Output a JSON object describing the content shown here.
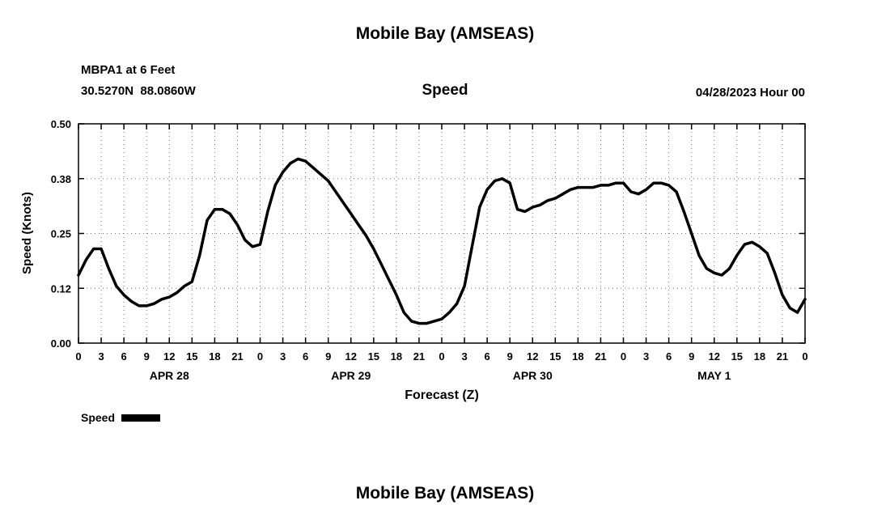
{
  "header": {
    "title": "Mobile Bay (AMSEAS)",
    "station": "MBPA1 at 6 Feet",
    "coordinates": "30.5270N  88.0860W",
    "plot_title": "Speed",
    "run_time": "04/28/2023 Hour 00"
  },
  "legend": {
    "label": "Speed",
    "swatch_color": "#000000"
  },
  "footer": {
    "next_title": "Mobile Bay (AMSEAS)"
  },
  "chart_data": {
    "type": "line",
    "title": "Speed",
    "xlabel": "Forecast (Z)",
    "ylabel": "Speed (Knots)",
    "series_name": "Speed",
    "line_color": "#000000",
    "grid": true,
    "xlim": [
      0,
      96
    ],
    "ylim": [
      0,
      0.5
    ],
    "x_ticks": [
      0,
      3,
      6,
      9,
      12,
      15,
      18,
      21,
      24,
      27,
      30,
      33,
      36,
      39,
      42,
      45,
      48,
      51,
      54,
      57,
      60,
      63,
      66,
      69,
      72,
      75,
      78,
      81,
      84,
      87,
      90,
      93,
      96
    ],
    "x_tick_labels": [
      "0",
      "3",
      "6",
      "9",
      "12",
      "15",
      "18",
      "21",
      "0",
      "3",
      "6",
      "9",
      "12",
      "15",
      "18",
      "21",
      "0",
      "3",
      "6",
      "9",
      "12",
      "15",
      "18",
      "21",
      "0",
      "3",
      "6",
      "9",
      "12",
      "15",
      "18",
      "21",
      "0"
    ],
    "y_ticks": [
      0,
      0.125,
      0.25,
      0.375,
      0.5
    ],
    "y_tick_labels": [
      "0.00",
      "0.12",
      "0.25",
      "0.38",
      "0.50"
    ],
    "date_labels": [
      {
        "label": "APR 28",
        "hour": 12
      },
      {
        "label": "APR 29",
        "hour": 36
      },
      {
        "label": "APR 30",
        "hour": 60
      },
      {
        "label": "MAY 1",
        "hour": 84
      }
    ],
    "x": [
      0,
      1,
      2,
      3,
      4,
      5,
      6,
      7,
      8,
      9,
      10,
      11,
      12,
      13,
      14,
      15,
      16,
      17,
      18,
      19,
      20,
      21,
      22,
      23,
      24,
      25,
      26,
      27,
      28,
      29,
      30,
      31,
      32,
      33,
      34,
      35,
      36,
      37,
      38,
      39,
      40,
      41,
      42,
      43,
      44,
      45,
      46,
      47,
      48,
      49,
      50,
      51,
      52,
      53,
      54,
      55,
      56,
      57,
      58,
      59,
      60,
      61,
      62,
      63,
      64,
      65,
      66,
      67,
      68,
      69,
      70,
      71,
      72,
      73,
      74,
      75,
      76,
      77,
      78,
      79,
      80,
      81,
      82,
      83,
      84,
      85,
      86,
      87,
      88,
      89,
      90,
      91,
      92,
      93,
      94,
      95,
      96
    ],
    "values": [
      0.155,
      0.19,
      0.215,
      0.215,
      0.17,
      0.13,
      0.11,
      0.095,
      0.085,
      0.085,
      0.09,
      0.1,
      0.105,
      0.115,
      0.13,
      0.14,
      0.2,
      0.28,
      0.305,
      0.305,
      0.295,
      0.27,
      0.235,
      0.22,
      0.225,
      0.3,
      0.36,
      0.39,
      0.41,
      0.42,
      0.415,
      0.4,
      0.385,
      0.37,
      0.345,
      0.32,
      0.295,
      0.27,
      0.245,
      0.215,
      0.18,
      0.145,
      0.11,
      0.07,
      0.05,
      0.045,
      0.045,
      0.05,
      0.055,
      0.07,
      0.09,
      0.13,
      0.22,
      0.31,
      0.35,
      0.37,
      0.375,
      0.365,
      0.305,
      0.3,
      0.31,
      0.315,
      0.325,
      0.33,
      0.34,
      0.35,
      0.355,
      0.355,
      0.355,
      0.36,
      0.36,
      0.365,
      0.365,
      0.345,
      0.34,
      0.35,
      0.365,
      0.365,
      0.36,
      0.345,
      0.3,
      0.25,
      0.2,
      0.17,
      0.16,
      0.155,
      0.17,
      0.2,
      0.225,
      0.23,
      0.22,
      0.205,
      0.16,
      0.11,
      0.08,
      0.07,
      0.1
    ]
  }
}
